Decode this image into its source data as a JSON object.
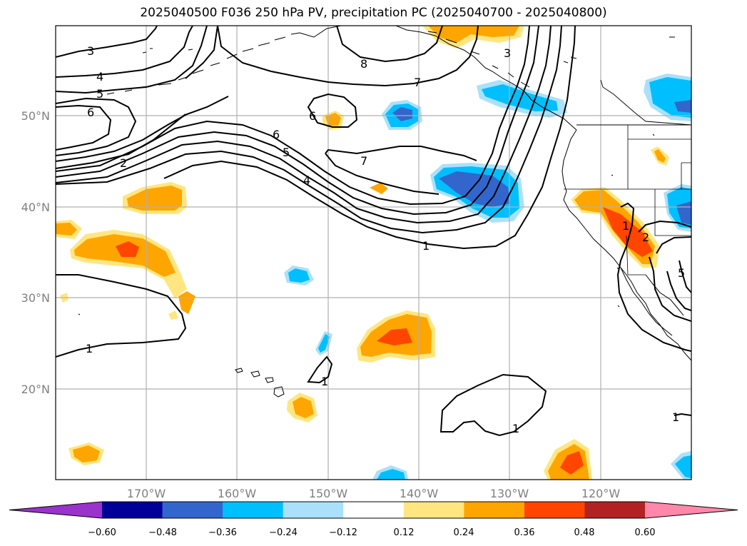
{
  "title": "2025040500 F036 250 hPa PV, precipitation PC (2025040700 - 2025040800)",
  "latitude_labels": [
    "50°N",
    "40°N",
    "30°N",
    "20°N"
  ],
  "longitude_labels": [
    "170°W",
    "160°W",
    "150°W",
    "140°W",
    "130°W",
    "120°W"
  ],
  "pv_contour_labels": [
    "3",
    "4",
    "5",
    "6",
    "2",
    "8",
    "7",
    "6",
    "6",
    "5",
    "4",
    "7",
    "3",
    "1",
    "1",
    "1",
    "1",
    "1",
    "2",
    "5",
    "1"
  ],
  "colorbar": {
    "tick_labels": [
      "−0.60",
      "−0.48",
      "−0.36",
      "−0.24",
      "−0.12",
      "0.12",
      "0.24",
      "0.36",
      "0.48",
      "0.60"
    ],
    "colors": [
      "#9933cc",
      "#000099",
      "#3366cc",
      "#00bfff",
      "#aae1fa",
      "#ffffff",
      "#ffe680",
      "#ffa500",
      "#ff4500",
      "#b22222",
      "#ff88aa"
    ],
    "extend": "both"
  },
  "shading_colors": {
    "neg_light": "#aae1fa",
    "neg_mid": "#00bfff",
    "neg_strong": "#3366cc",
    "pos_light": "#ffe680",
    "pos_mid": "#ffa500",
    "pos_strong": "#ff4500"
  },
  "grid": true
}
